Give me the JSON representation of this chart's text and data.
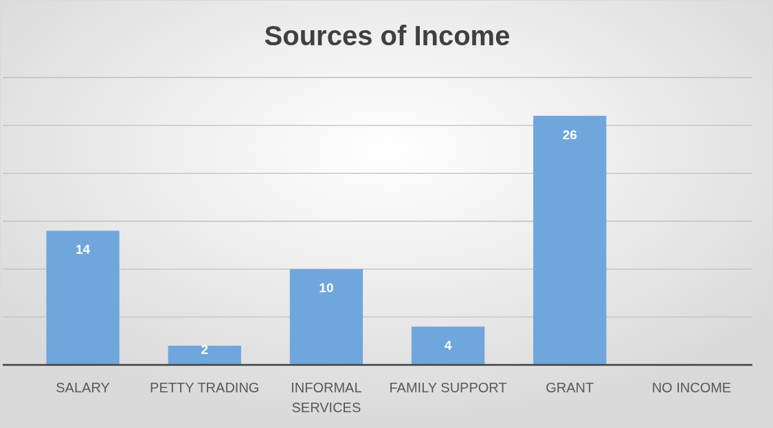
{
  "chart_data": {
    "type": "bar",
    "title": "Sources of Income",
    "categories": [
      "SALARY",
      "PETTY TRADING",
      "INFORMAL SERVICES",
      "FAMILY SUPPORT",
      "GRANT",
      "NO INCOME"
    ],
    "values": [
      14,
      2,
      10,
      4,
      26,
      0
    ],
    "value_labels": [
      "14",
      "2",
      "10",
      "4",
      "26",
      null
    ],
    "color": "#6fa6dc",
    "ylim": [
      0,
      30
    ],
    "yticks": [
      {
        "value": 0,
        "label": null
      },
      {
        "value": 5,
        "label": null
      },
      {
        "value": 10,
        "label": null
      },
      {
        "value": 15,
        "label": null
      },
      {
        "value": 20,
        "label": null
      },
      {
        "value": 25,
        "label": null
      },
      {
        "value": 30,
        "label": null
      }
    ],
    "grid": true
  }
}
